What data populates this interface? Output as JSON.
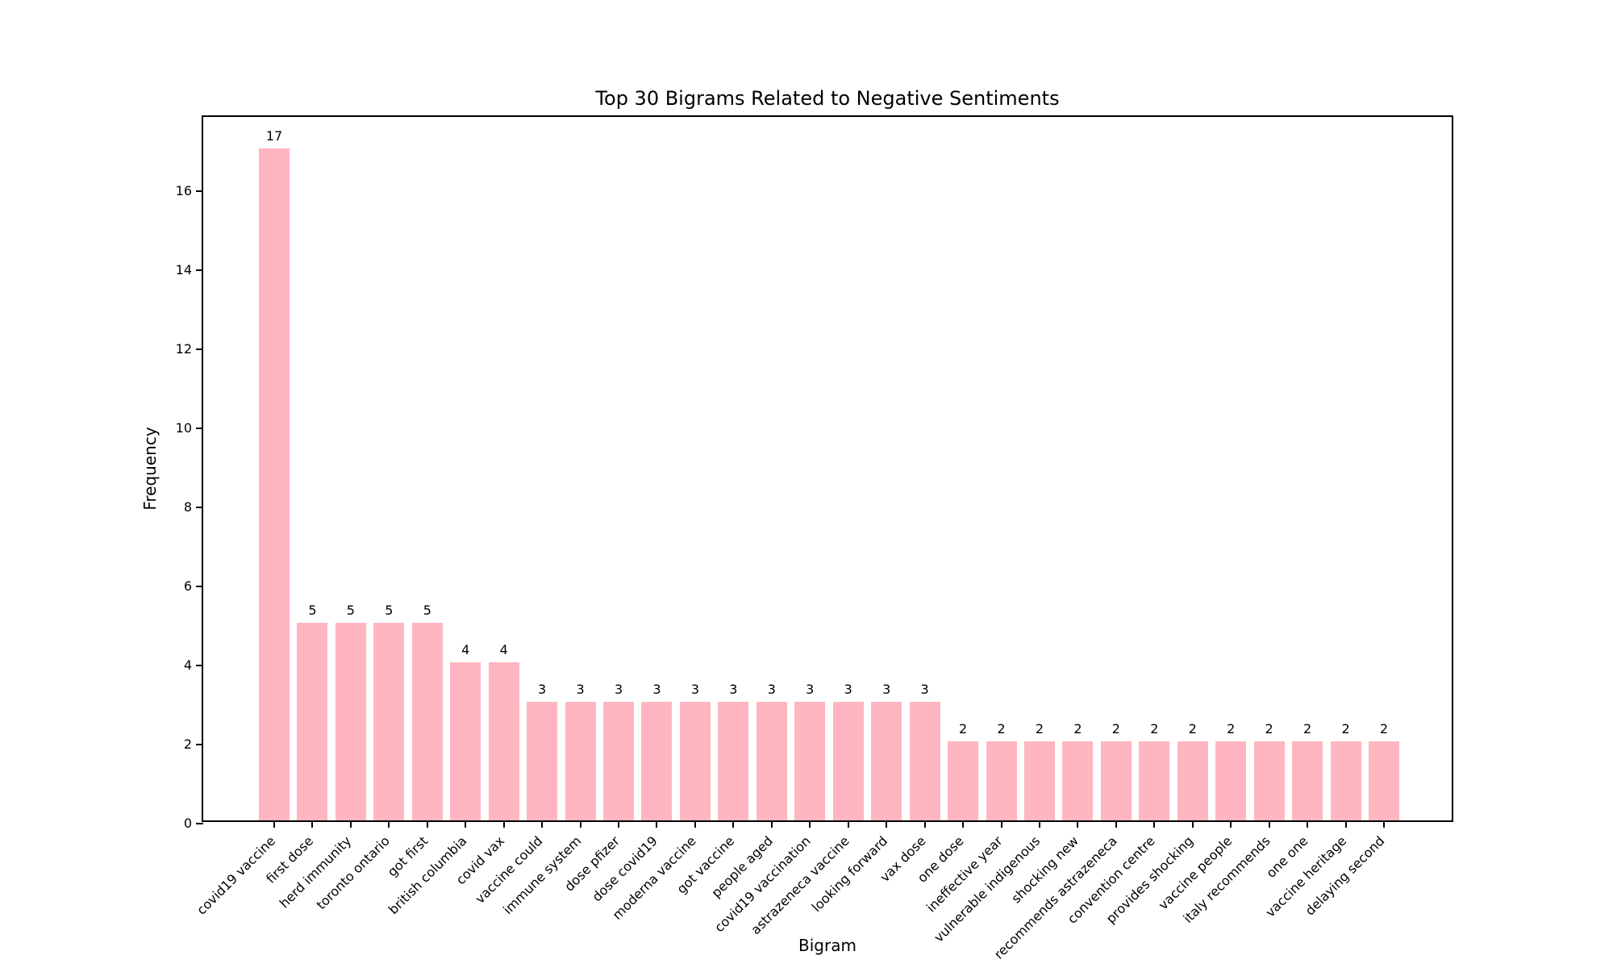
{
  "chart_data": {
    "type": "bar",
    "title": "Top 30 Bigrams Related to Negative Sentiments",
    "xlabel": "Bigram",
    "ylabel": "Frequency",
    "categories": [
      "covid19 vaccine",
      "first dose",
      "herd immunity",
      "toronto ontario",
      "got first",
      "british columbia",
      "covid vax",
      "vaccine could",
      "immune system",
      "dose pfizer",
      "dose covid19",
      "moderna vaccine",
      "got vaccine",
      "people aged",
      "covid19 vaccination",
      "astrazeneca vaccine",
      "looking forward",
      "vax dose",
      "one dose",
      "ineffective year",
      "vulnerable indigenous",
      "shocking new",
      "recommends astrazeneca",
      "convention centre",
      "provides shocking",
      "vaccine people",
      "italy recommends",
      "one one",
      "vaccine heritage",
      "delaying second"
    ],
    "values": [
      17,
      5,
      5,
      5,
      5,
      4,
      4,
      3,
      3,
      3,
      3,
      3,
      3,
      3,
      3,
      3,
      3,
      3,
      2,
      2,
      2,
      2,
      2,
      2,
      2,
      2,
      2,
      2,
      2,
      2
    ],
    "bar_labels_shown": true,
    "yticks": [
      0,
      2,
      4,
      6,
      8,
      10,
      12,
      14,
      16
    ],
    "ylim": [
      0,
      17.88
    ],
    "grid": false,
    "legend": "none",
    "bar_color": "#ffb6c1",
    "axis_color": "#000000",
    "background_color": "#ffffff",
    "x_tick_label_rotation_deg": 45
  }
}
